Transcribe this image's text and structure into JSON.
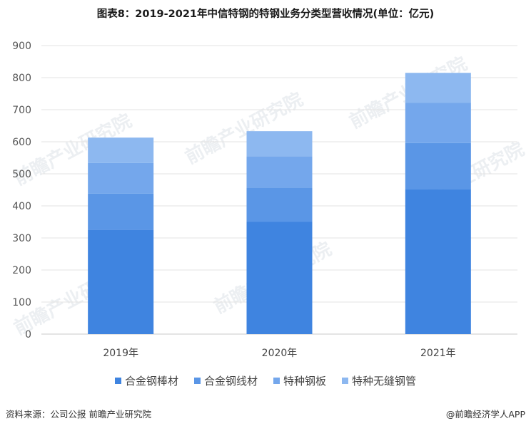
{
  "chart_data": {
    "type": "bar",
    "stacked": true,
    "title": "图表8：2019-2021年中信特钢的特钢业务分类型营收情况(单位：亿元)",
    "categories": [
      "2019年",
      "2020年",
      "2021年"
    ],
    "series": [
      {
        "name": "合金钢棒材",
        "values": [
          326,
          350,
          452
        ],
        "color": "#3f84e0"
      },
      {
        "name": "合金钢线材",
        "values": [
          112,
          107,
          144
        ],
        "color": "#5a96e6"
      },
      {
        "name": "特种钢板",
        "values": [
          96,
          98,
          126
        ],
        "color": "#74a7ec"
      },
      {
        "name": "特种无缝钢管",
        "values": [
          79,
          78,
          93
        ],
        "color": "#8db8f0"
      }
    ],
    "yticks": [
      0,
      100,
      200,
      300,
      400,
      500,
      600,
      700,
      800,
      900
    ],
    "ylim": [
      0,
      900
    ],
    "grid": true,
    "legend_position": "bottom"
  },
  "footer": {
    "source": "资料来源：公司公报 前瞻产业研究院",
    "brand": "@前瞻经济学人APP"
  },
  "watermark_text": "前瞻产业研究院"
}
